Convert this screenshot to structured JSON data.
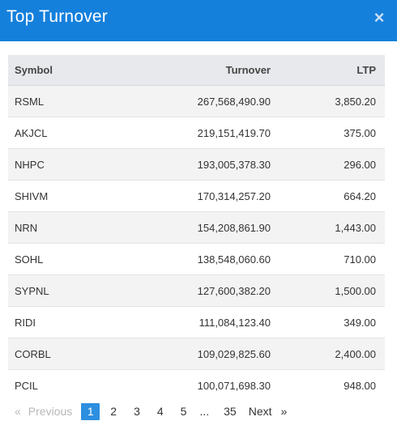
{
  "modal": {
    "title": "Top Turnover",
    "close_glyph": "×"
  },
  "table": {
    "headers": {
      "symbol": "Symbol",
      "turnover": "Turnover",
      "ltp": "LTP"
    },
    "rows": [
      {
        "symbol": "RSML",
        "turnover": "267,568,490.90",
        "ltp": "3,850.20"
      },
      {
        "symbol": "AKJCL",
        "turnover": "219,151,419.70",
        "ltp": "375.00"
      },
      {
        "symbol": "NHPC",
        "turnover": "193,005,378.30",
        "ltp": "296.00"
      },
      {
        "symbol": "SHIVM",
        "turnover": "170,314,257.20",
        "ltp": "664.20"
      },
      {
        "symbol": "NRN",
        "turnover": "154,208,861.90",
        "ltp": "1,443.00"
      },
      {
        "symbol": "SOHL",
        "turnover": "138,548,060.60",
        "ltp": "710.00"
      },
      {
        "symbol": "SYPNL",
        "turnover": "127,600,382.20",
        "ltp": "1,500.00"
      },
      {
        "symbol": "RIDI",
        "turnover": "111,084,123.40",
        "ltp": "349.00"
      },
      {
        "symbol": "CORBL",
        "turnover": "109,029,825.60",
        "ltp": "2,400.00"
      },
      {
        "symbol": "PCIL",
        "turnover": "100,071,698.30",
        "ltp": "948.00"
      }
    ]
  },
  "pagination": {
    "first": "«",
    "previous": "Previous",
    "pages": [
      "1",
      "2",
      "3",
      "4",
      "5"
    ],
    "ellipsis": "...",
    "last_page": "35",
    "next": "Next",
    "last": "»",
    "current": "1"
  },
  "colors": {
    "header_bg": "#1580dc",
    "active_page": "#2d8fe0"
  }
}
